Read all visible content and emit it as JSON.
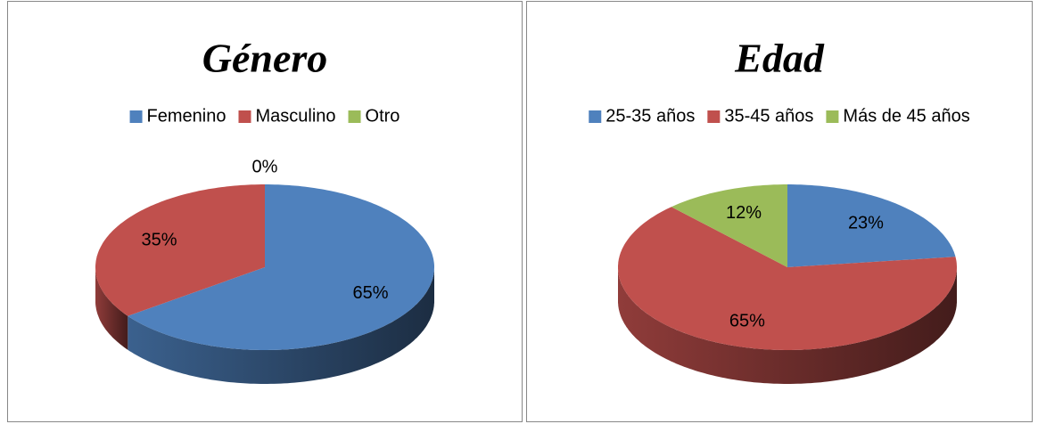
{
  "chart_data": [
    {
      "type": "pie",
      "title": "Género",
      "categories": [
        "Femenino",
        "Masculino",
        "Otro"
      ],
      "values": [
        65,
        35,
        0
      ],
      "value_labels": [
        "65%",
        "35%",
        "0%"
      ],
      "colors": [
        "#4f81bd",
        "#c0504d",
        "#9bbb59"
      ],
      "legend": "top"
    },
    {
      "type": "pie",
      "title": "Edad",
      "categories": [
        "25-35 años",
        "35-45 años",
        "Más de 45 años"
      ],
      "values": [
        23,
        65,
        12
      ],
      "value_labels": [
        "23%",
        "65%",
        "12%"
      ],
      "colors": [
        "#4f81bd",
        "#c0504d",
        "#9bbb59"
      ],
      "legend": "top"
    }
  ]
}
